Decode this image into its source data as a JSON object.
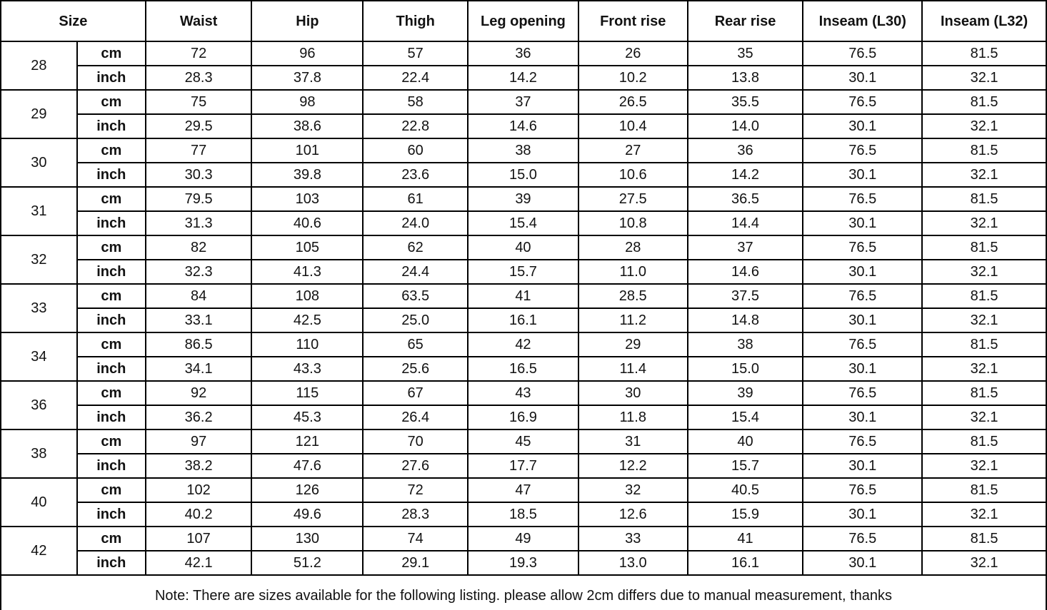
{
  "chart_data": {
    "type": "table",
    "title": "",
    "columns": [
      "Size",
      "Waist",
      "Hip",
      "Thigh",
      "Leg opening",
      "Front rise",
      "Rear rise",
      "Inseam (L30)",
      "Inseam (L32)"
    ],
    "unit_labels": [
      "cm",
      "inch"
    ],
    "sizes": [
      {
        "size": "28",
        "cm": [
          "72",
          "96",
          "57",
          "36",
          "26",
          "35",
          "76.5",
          "81.5"
        ],
        "inch": [
          "28.3",
          "37.8",
          "22.4",
          "14.2",
          "10.2",
          "13.8",
          "30.1",
          "32.1"
        ]
      },
      {
        "size": "29",
        "cm": [
          "75",
          "98",
          "58",
          "37",
          "26.5",
          "35.5",
          "76.5",
          "81.5"
        ],
        "inch": [
          "29.5",
          "38.6",
          "22.8",
          "14.6",
          "10.4",
          "14.0",
          "30.1",
          "32.1"
        ]
      },
      {
        "size": "30",
        "cm": [
          "77",
          "101",
          "60",
          "38",
          "27",
          "36",
          "76.5",
          "81.5"
        ],
        "inch": [
          "30.3",
          "39.8",
          "23.6",
          "15.0",
          "10.6",
          "14.2",
          "30.1",
          "32.1"
        ]
      },
      {
        "size": "31",
        "cm": [
          "79.5",
          "103",
          "61",
          "39",
          "27.5",
          "36.5",
          "76.5",
          "81.5"
        ],
        "inch": [
          "31.3",
          "40.6",
          "24.0",
          "15.4",
          "10.8",
          "14.4",
          "30.1",
          "32.1"
        ]
      },
      {
        "size": "32",
        "cm": [
          "82",
          "105",
          "62",
          "40",
          "28",
          "37",
          "76.5",
          "81.5"
        ],
        "inch": [
          "32.3",
          "41.3",
          "24.4",
          "15.7",
          "11.0",
          "14.6",
          "30.1",
          "32.1"
        ]
      },
      {
        "size": "33",
        "cm": [
          "84",
          "108",
          "63.5",
          "41",
          "28.5",
          "37.5",
          "76.5",
          "81.5"
        ],
        "inch": [
          "33.1",
          "42.5",
          "25.0",
          "16.1",
          "11.2",
          "14.8",
          "30.1",
          "32.1"
        ]
      },
      {
        "size": "34",
        "cm": [
          "86.5",
          "110",
          "65",
          "42",
          "29",
          "38",
          "76.5",
          "81.5"
        ],
        "inch": [
          "34.1",
          "43.3",
          "25.6",
          "16.5",
          "11.4",
          "15.0",
          "30.1",
          "32.1"
        ]
      },
      {
        "size": "36",
        "cm": [
          "92",
          "115",
          "67",
          "43",
          "30",
          "39",
          "76.5",
          "81.5"
        ],
        "inch": [
          "36.2",
          "45.3",
          "26.4",
          "16.9",
          "11.8",
          "15.4",
          "30.1",
          "32.1"
        ]
      },
      {
        "size": "38",
        "cm": [
          "97",
          "121",
          "70",
          "45",
          "31",
          "40",
          "76.5",
          "81.5"
        ],
        "inch": [
          "38.2",
          "47.6",
          "27.6",
          "17.7",
          "12.2",
          "15.7",
          "30.1",
          "32.1"
        ]
      },
      {
        "size": "40",
        "cm": [
          "102",
          "126",
          "72",
          "47",
          "32",
          "40.5",
          "76.5",
          "81.5"
        ],
        "inch": [
          "40.2",
          "49.6",
          "28.3",
          "18.5",
          "12.6",
          "15.9",
          "30.1",
          "32.1"
        ]
      },
      {
        "size": "42",
        "cm": [
          "107",
          "130",
          "74",
          "49",
          "33",
          "41",
          "76.5",
          "81.5"
        ],
        "inch": [
          "42.1",
          "51.2",
          "29.1",
          "19.3",
          "13.0",
          "16.1",
          "30.1",
          "32.1"
        ]
      }
    ],
    "note": "Note: There are sizes available for the following listing. please allow 2cm differs due to manual measurement, thanks",
    "layout": {
      "grid": "all-borders",
      "legend": "none"
    },
    "colors": {
      "border": "#000000",
      "text": "#121212",
      "background": "#ffffff"
    }
  }
}
